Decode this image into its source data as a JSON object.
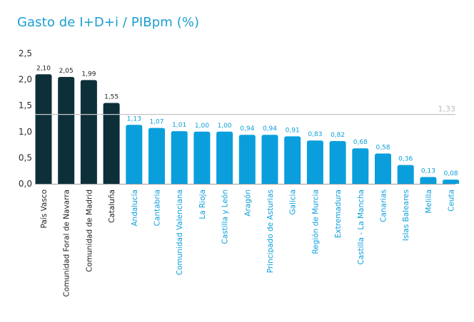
{
  "chart_data": {
    "type": "bar",
    "title": "Gasto de I+D+i / PIBpm (%)",
    "xlabel": "",
    "ylabel": "",
    "ylim": [
      0,
      2.5
    ],
    "yticks": [
      "0,0",
      "0,5",
      "1,0",
      "1,5",
      "2,0",
      "2,5"
    ],
    "grid": false,
    "categories": [
      "País Vasco",
      "Comunidad Foral de Navarra",
      "Comunidad de Madrid",
      "Cataluña",
      "Andalucía",
      "Cantabria",
      "Comunidad Valenciana",
      "La Rioja",
      "Castilla y León",
      "Aragón",
      "Principado de Asturias",
      "Galicia",
      "Región de Murcia",
      "Extremadura",
      "Castilla - La Mancha",
      "Canarias",
      "Islas Baleares",
      "Melilla",
      "Ceuta"
    ],
    "values": [
      2.1,
      2.05,
      1.99,
      1.55,
      1.13,
      1.07,
      1.01,
      1.0,
      1.0,
      0.94,
      0.94,
      0.91,
      0.83,
      0.82,
      0.68,
      0.58,
      0.36,
      0.13,
      0.08
    ],
    "value_labels": [
      "2,10",
      "2,05",
      "1,99",
      "1,55",
      "1,13",
      "1,07",
      "1,01",
      "1,00",
      "1,00",
      "0,94",
      "0,94",
      "0,91",
      "0,83",
      "0,82",
      "0,68",
      "0,58",
      "0,36",
      "0,13",
      "0,08"
    ],
    "reference_line": {
      "value": 1.33,
      "label": "1,33"
    },
    "colors": {
      "above": "#0d2f3a",
      "below": "#0a9fdc",
      "reference": "#c4c4c4",
      "title": "#1a9fd0"
    },
    "highlight_count": 4
  }
}
